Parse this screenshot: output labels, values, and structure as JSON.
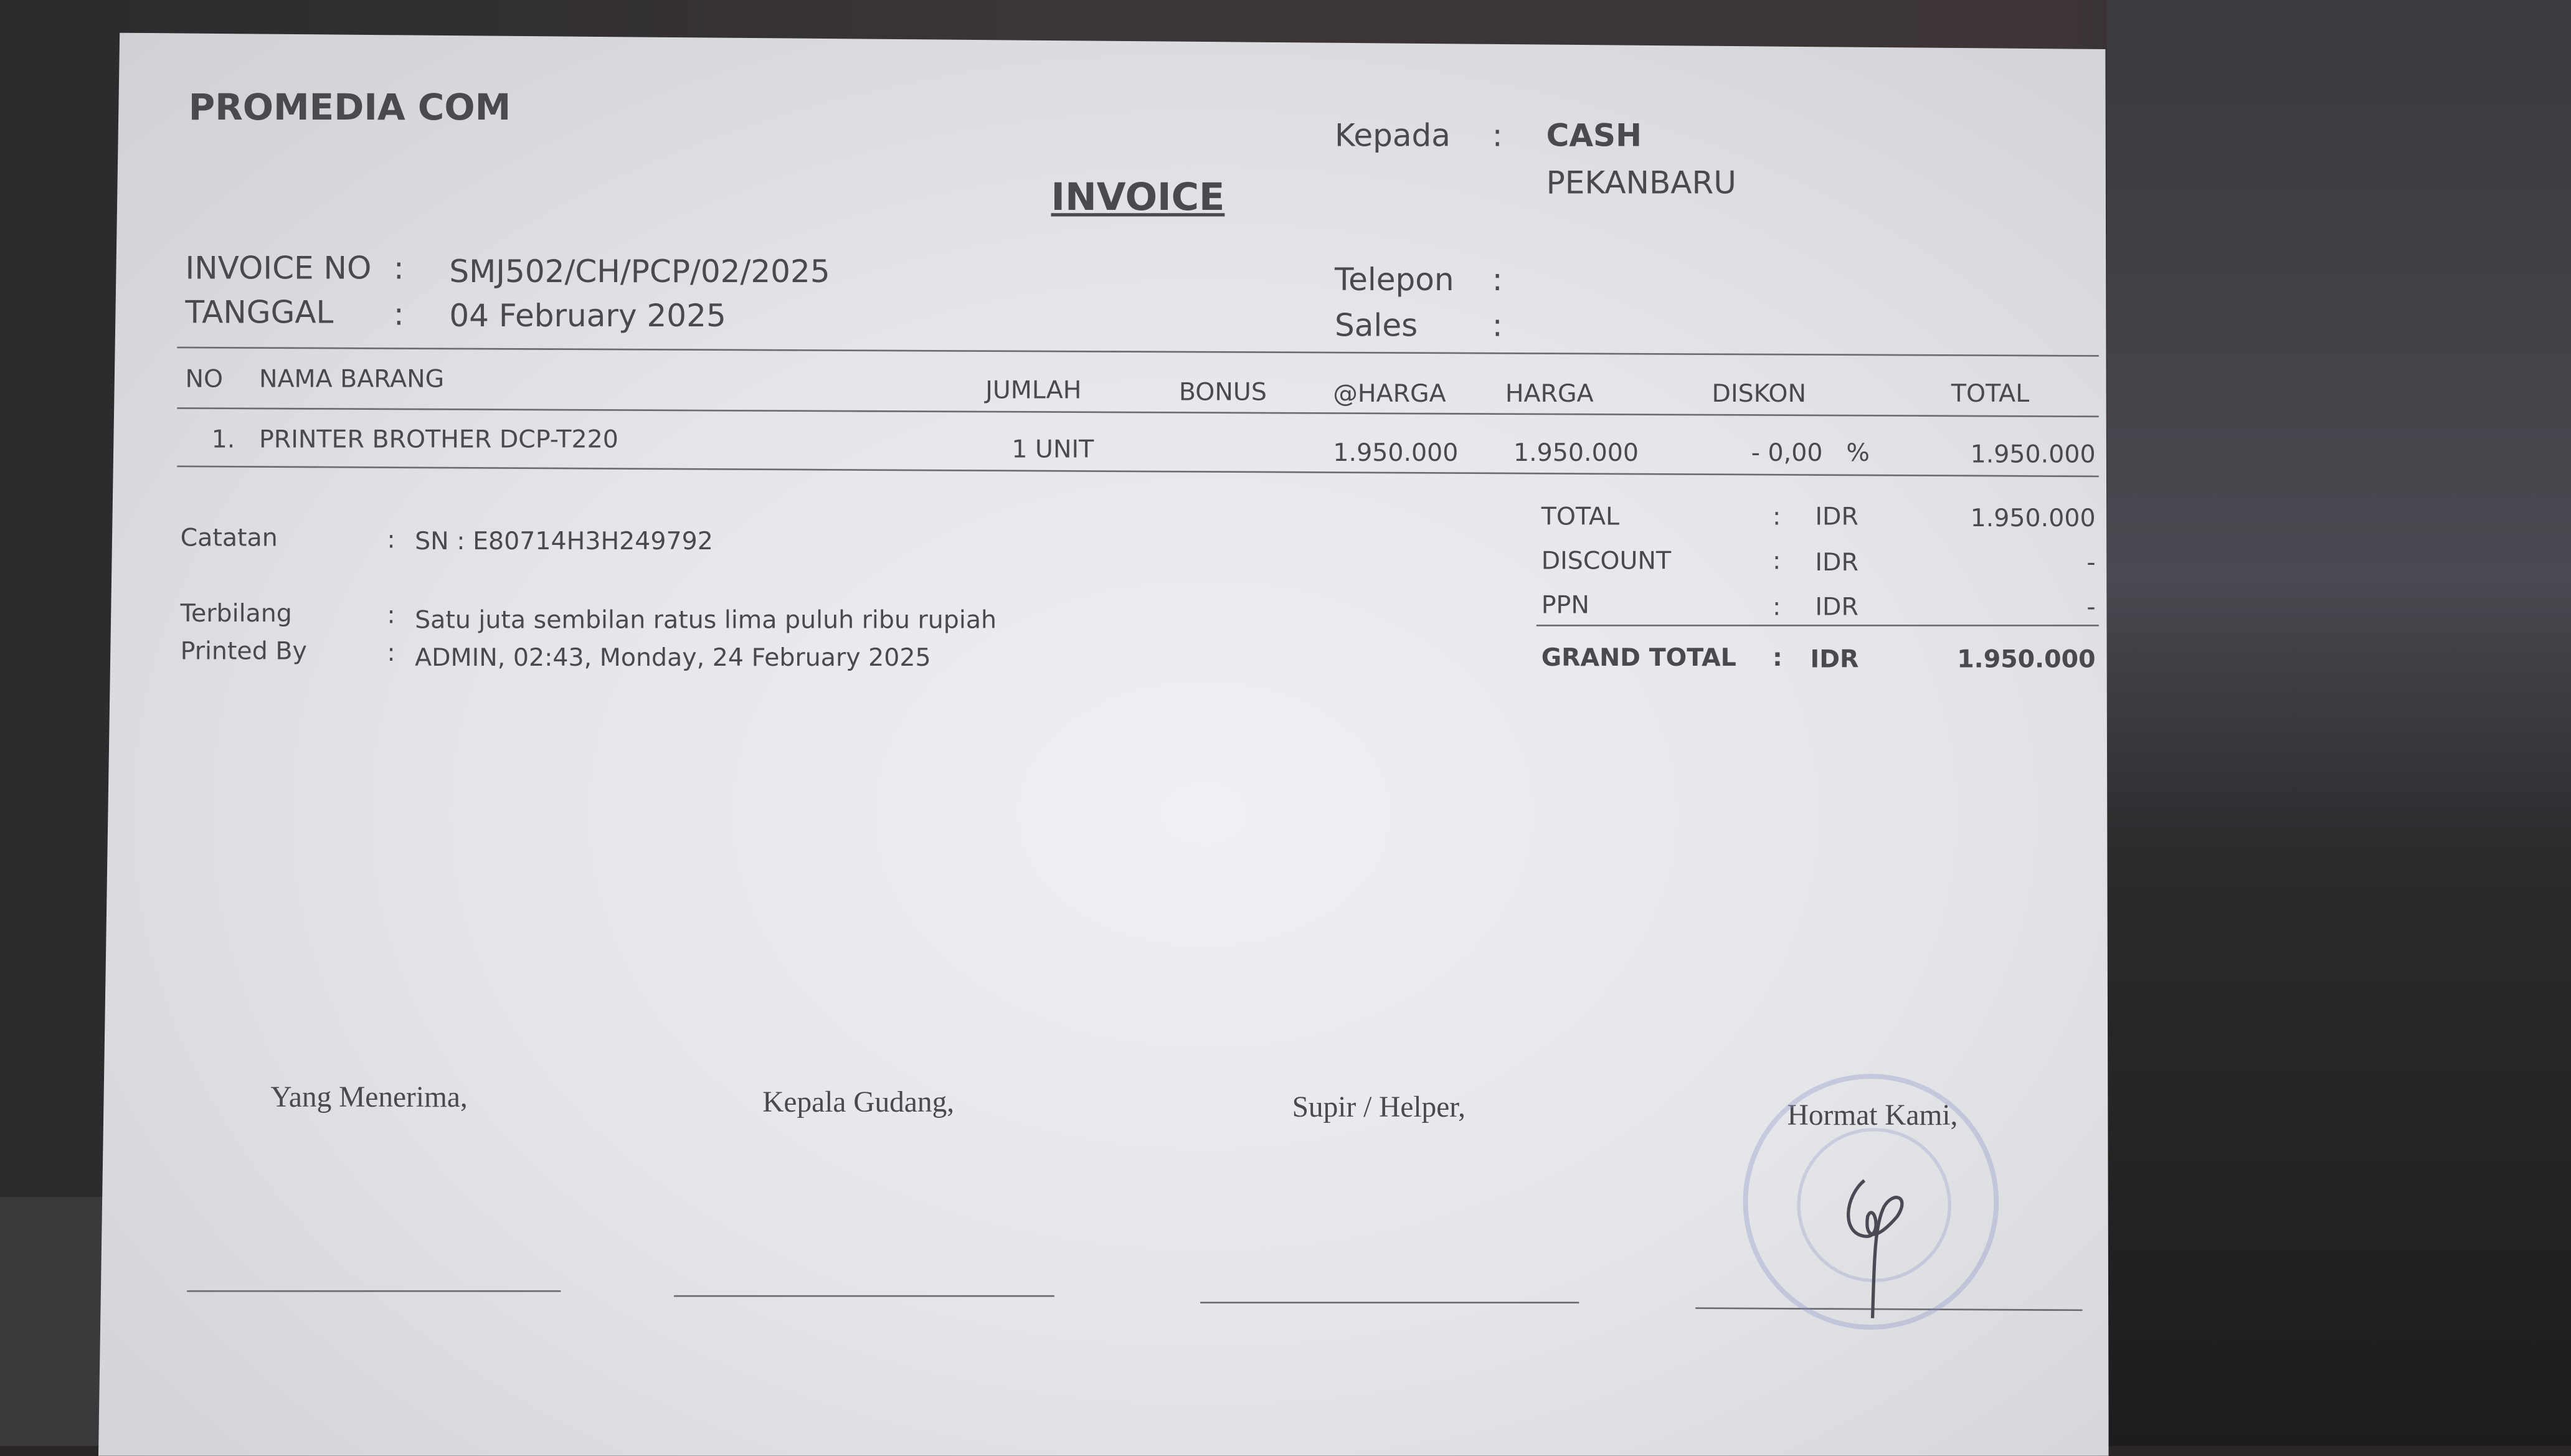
{
  "company": "PROMEDIA COM",
  "title": "INVOICE",
  "invoice_no_label": "INVOICE NO",
  "invoice_no": "SMJ502/CH/PCP/02/2025",
  "date_label": "TANGGAL",
  "date": "04 February 2025",
  "customer": {
    "to_label": "Kepada",
    "to_name": "CASH",
    "to_city": "PEKANBARU",
    "phone_label": "Telepon",
    "phone": "",
    "sales_label": "Sales",
    "sales": ""
  },
  "table": {
    "headers": [
      "NO",
      "NAMA BARANG",
      "JUMLAH",
      "BONUS",
      "@HARGA",
      "HARGA",
      "DISKON",
      "TOTAL"
    ],
    "rows": [
      {
        "no": "1.",
        "item": "PRINTER BROTHER DCP-T220",
        "qty": "1  UNIT",
        "bonus": "",
        "unit_price": "1.950.000",
        "price": "1.950.000",
        "discount": "- 0,00",
        "discount_unit": "%",
        "total": "1.950.000"
      }
    ]
  },
  "notes": {
    "note_label": "Catatan",
    "note": "SN : E80714H3H249792",
    "spelled_label": "Terbilang",
    "spelled": "Satu juta sembilan ratus lima puluh ribu rupiah",
    "printed_label": "Printed By",
    "printed": "ADMIN, 02:43, Monday, 24 February 2025"
  },
  "summary": [
    {
      "label": "TOTAL",
      "currency": "IDR",
      "value": "1.950.000"
    },
    {
      "label": "DISCOUNT",
      "currency": "IDR",
      "value": "-"
    },
    {
      "label": "PPN",
      "currency": "IDR",
      "value": "-"
    }
  ],
  "grand_total": {
    "label": "GRAND TOTAL",
    "currency": "IDR",
    "value": "1.950.000"
  },
  "signatures": [
    "Yang Menerima,",
    "Kepala Gudang,",
    "Supir / Helper,",
    "Hormat Kami,"
  ],
  "colon": ":"
}
